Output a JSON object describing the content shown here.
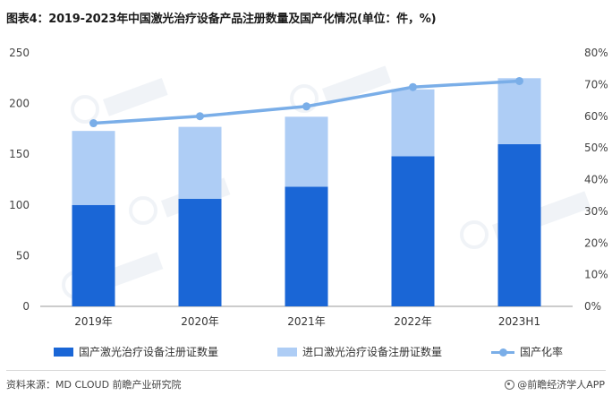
{
  "title": "图表4：2019-2023年中国激光治疗设备产品注册数量及国产化情况(单位：件，%)",
  "chart_data": {
    "type": "bar",
    "categories": [
      "2019年",
      "2020年",
      "2021年",
      "2022年",
      "2023H1"
    ],
    "series": [
      {
        "name": "国产激光治疗设备注册证数量",
        "type": "stacked-bar",
        "axis": "left",
        "color": "#1a66d6",
        "values": [
          100,
          106,
          118,
          148,
          160
        ]
      },
      {
        "name": "进口激光治疗设备注册证数量",
        "type": "stacked-bar",
        "axis": "left",
        "color": "#aecdf5",
        "values": [
          73,
          71,
          69,
          66,
          65
        ]
      },
      {
        "name": "国产化率",
        "type": "line",
        "axis": "right",
        "color": "#7aaee8",
        "values": [
          57.8,
          60.0,
          63.1,
          69.2,
          71.1
        ]
      }
    ],
    "y_left": {
      "min": 0,
      "max": 250,
      "ticks": [
        0,
        50,
        100,
        150,
        200,
        250
      ]
    },
    "y_right": {
      "min": 0,
      "max": 80,
      "ticks": [
        "0%",
        "10%",
        "20%",
        "30%",
        "40%",
        "50%",
        "60%",
        "70%",
        "80%"
      ]
    },
    "grid": false,
    "legend_position": "bottom"
  },
  "footer": {
    "source": "资料来源：MD CLOUD 前瞻产业研究院",
    "brand": "@前瞻经济学人APP"
  }
}
